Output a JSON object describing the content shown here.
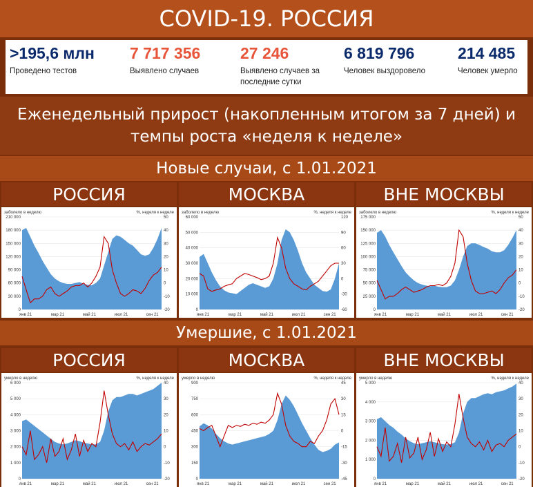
{
  "header": {
    "title": "COVID-19. РОССИЯ"
  },
  "stats": [
    {
      "value": ">195,6 млн",
      "label": "Проведено тестов",
      "color": "#0b2a6b"
    },
    {
      "value": "7 717 356",
      "label": "Выявлено случаев",
      "color": "#e8553a"
    },
    {
      "value": "27 246",
      "label": "Выявлено случаев за последние сутки",
      "color": "#e8553a"
    },
    {
      "value": "6 819 796",
      "label": "Человек выздоровело",
      "color": "#0b2a6b"
    },
    {
      "value": "214 485",
      "label": "Человек умерло",
      "color": "#0b2a6b"
    }
  ],
  "subtitle": "Еженедельный прирост (накопленным итогом за 7 дней) и темпы роста «неделя к неделе»",
  "sections": [
    {
      "title": "Новые случаи, с 1.01.2021"
    },
    {
      "title": "Умершие, с 1.01.2021"
    }
  ],
  "colors": {
    "area": "#5b9bd5",
    "line": "#c00000"
  },
  "chart_data": [
    {
      "type": "area",
      "region": "РОССИЯ",
      "section": "cases",
      "ylabel": "заболело в неделю",
      "y2label": "%, неделя к неделе",
      "x_ticks": [
        "янв 21",
        "мар 21",
        "май 21",
        "июл 21",
        "сен 21"
      ],
      "ylim": [
        0,
        210000
      ],
      "y_ticks": [
        "210 000",
        "180 000",
        "150 000",
        "120 000",
        "90 000",
        "60 000",
        "30 000",
        "0"
      ],
      "y2lim": [
        -20,
        50
      ],
      "y2_ticks": [
        "50",
        "40",
        "30",
        "20",
        "10",
        "0",
        "-10",
        "-20"
      ],
      "area_values": [
        180000,
        185000,
        165000,
        145000,
        128000,
        110000,
        95000,
        80000,
        70000,
        64000,
        60000,
        58000,
        58000,
        60000,
        62000,
        58000,
        56000,
        55000,
        60000,
        70000,
        100000,
        130000,
        160000,
        168000,
        165000,
        158000,
        150000,
        145000,
        135000,
        125000,
        122000,
        125000,
        140000,
        160000,
        185000
      ],
      "line_values": [
        5,
        -5,
        -15,
        -12,
        -12,
        -10,
        -5,
        -3,
        -8,
        -10,
        -8,
        -6,
        -3,
        -2,
        -2,
        0,
        -3,
        0,
        5,
        12,
        35,
        30,
        10,
        0,
        -8,
        -10,
        -8,
        -5,
        -6,
        -8,
        -4,
        2,
        6,
        8,
        12
      ]
    },
    {
      "type": "area",
      "region": "МОСКВА",
      "section": "cases",
      "ylabel": "заболело в неделю",
      "y2label": "%, неделя к неделе",
      "x_ticks": [
        "янв 21",
        "мар 21",
        "май 21",
        "июл 21",
        "сен 21"
      ],
      "ylim": [
        0,
        60000
      ],
      "y_ticks": [
        "60 000",
        "50 000",
        "40 000",
        "30 000",
        "20 000",
        "10 000",
        "0"
      ],
      "y2lim": [
        -60,
        120
      ],
      "y2_ticks": [
        "120",
        "90",
        "60",
        "30",
        "0",
        "-30",
        "-60"
      ],
      "area_values": [
        34000,
        36000,
        30000,
        24000,
        19000,
        15000,
        12500,
        11000,
        10500,
        10000,
        12000,
        14000,
        16000,
        17000,
        16000,
        15000,
        14000,
        15000,
        20000,
        30000,
        45000,
        52000,
        50000,
        45000,
        38000,
        30000,
        24000,
        20000,
        16000,
        14000,
        12000,
        11500,
        13000,
        20000,
        30000
      ],
      "line_values": [
        10,
        5,
        -20,
        -25,
        -22,
        -20,
        -15,
        -12,
        -10,
        0,
        5,
        10,
        8,
        5,
        2,
        -2,
        0,
        5,
        30,
        80,
        60,
        20,
        0,
        -10,
        -15,
        -20,
        -22,
        -15,
        -10,
        -5,
        5,
        15,
        25,
        30,
        30
      ]
    },
    {
      "type": "area",
      "region": "ВНЕ МОСКВЫ",
      "section": "cases",
      "ylabel": "заболело в неделю",
      "y2label": "%, неделя к неделе",
      "x_ticks": [
        "янв 21",
        "мар 21",
        "май 21",
        "июл 21",
        "сен 21"
      ],
      "ylim": [
        0,
        175000
      ],
      "y_ticks": [
        "175 000",
        "150 000",
        "125 000",
        "100 000",
        "75 000",
        "50 000",
        "25 000",
        "0"
      ],
      "y2lim": [
        -20,
        50
      ],
      "y2_ticks": [
        "50",
        "40",
        "30",
        "20",
        "10",
        "0",
        "-10",
        "-20"
      ],
      "area_values": [
        145000,
        150000,
        138000,
        122000,
        108000,
        95000,
        82000,
        70000,
        62000,
        55000,
        50000,
        47000,
        45000,
        44000,
        45000,
        43000,
        42000,
        42000,
        45000,
        55000,
        75000,
        100000,
        120000,
        125000,
        125000,
        122000,
        118000,
        115000,
        110000,
        108000,
        108000,
        112000,
        122000,
        135000,
        150000
      ],
      "line_values": [
        2,
        -5,
        -12,
        -10,
        -10,
        -8,
        -5,
        -3,
        -5,
        -7,
        -6,
        -5,
        -3,
        -2,
        -2,
        -1,
        -2,
        0,
        5,
        15,
        40,
        35,
        15,
        2,
        -6,
        -8,
        -8,
        -7,
        -6,
        -8,
        -5,
        0,
        4,
        6,
        10
      ]
    },
    {
      "type": "area",
      "region": "РОССИЯ",
      "section": "deaths",
      "ylabel": "умерло в неделю",
      "y2label": "%, неделя к неделе",
      "x_ticks": [
        "янв 21",
        "мар 21",
        "май 21",
        "июл 21",
        "сен 21"
      ],
      "ylim": [
        0,
        6000
      ],
      "y_ticks": [
        "6 000",
        "5 000",
        "4 000",
        "3 000",
        "2 000",
        "1 000",
        "0"
      ],
      "y2lim": [
        -20,
        40
      ],
      "y2_ticks": [
        "40",
        "30",
        "20",
        "10",
        "0",
        "-10",
        "-20"
      ],
      "area_values": [
        3600,
        3700,
        3500,
        3300,
        3100,
        2900,
        2700,
        2500,
        2300,
        2200,
        2150,
        2200,
        2300,
        2400,
        2350,
        2250,
        2200,
        2150,
        2150,
        2300,
        3000,
        4200,
        4900,
        5100,
        5100,
        5200,
        5300,
        5300,
        5200,
        5300,
        5400,
        5500,
        5600,
        5800,
        6000
      ],
      "line_values": [
        0,
        -5,
        10,
        -8,
        -5,
        0,
        -10,
        5,
        -6,
        -3,
        5,
        -8,
        -2,
        8,
        -6,
        4,
        -3,
        2,
        0,
        15,
        35,
        20,
        8,
        2,
        0,
        2,
        -2,
        3,
        -3,
        0,
        2,
        1,
        3,
        5,
        8
      ]
    },
    {
      "type": "area",
      "region": "МОСКВА",
      "section": "deaths",
      "ylabel": "умерло в неделю",
      "y2label": "%, неделя к неделе",
      "x_ticks": [
        "янв 21",
        "мар 21",
        "май 21",
        "июл 21",
        "сен 21"
      ],
      "ylim": [
        0,
        900
      ],
      "y_ticks": [
        "900",
        "750",
        "600",
        "450",
        "300",
        "150",
        "0"
      ],
      "y2lim": [
        -45,
        45
      ],
      "y2_ticks": [
        "45",
        "30",
        "15",
        "0",
        "-15",
        "-30",
        "-45"
      ],
      "area_values": [
        490,
        520,
        500,
        470,
        420,
        380,
        350,
        330,
        320,
        330,
        340,
        350,
        360,
        370,
        380,
        390,
        400,
        420,
        450,
        550,
        700,
        780,
        740,
        680,
        600,
        520,
        450,
        380,
        320,
        270,
        250,
        260,
        280,
        320,
        340
      ],
      "line_values": [
        2,
        0,
        3,
        5,
        -5,
        -15,
        -5,
        5,
        3,
        5,
        4,
        6,
        5,
        7,
        6,
        8,
        7,
        10,
        15,
        35,
        25,
        5,
        -5,
        -10,
        -12,
        -15,
        -15,
        -10,
        -12,
        -5,
        0,
        10,
        25,
        30,
        15
      ]
    },
    {
      "type": "area",
      "region": "ВНЕ МОСКВЫ",
      "section": "deaths",
      "ylabel": "умерло в неделю",
      "y2label": "%, неделя к неделе",
      "x_ticks": [
        "янв 21",
        "мар 21",
        "май 21",
        "июл 21",
        "сен 21"
      ],
      "ylim": [
        0,
        5000
      ],
      "y_ticks": [
        "5 000",
        "4 000",
        "3 000",
        "2 000",
        "1 000",
        "0"
      ],
      "y2lim": [
        -20,
        40
      ],
      "y2_ticks": [
        "40",
        "30",
        "20",
        "10",
        "0",
        "-10",
        "-20"
      ],
      "area_values": [
        3100,
        3200,
        3000,
        2800,
        2650,
        2450,
        2300,
        2100,
        1950,
        1850,
        1800,
        1850,
        1900,
        1950,
        1900,
        1850,
        1800,
        1780,
        1800,
        1900,
        2400,
        3400,
        4000,
        4200,
        4200,
        4300,
        4400,
        4450,
        4400,
        4500,
        4550,
        4600,
        4700,
        4800,
        4950
      ],
      "line_values": [
        0,
        -6,
        12,
        -9,
        -6,
        2,
        -10,
        6,
        -7,
        -4,
        6,
        -8,
        -2,
        9,
        -6,
        5,
        -3,
        3,
        0,
        14,
        33,
        18,
        6,
        2,
        0,
        3,
        -2,
        4,
        -3,
        1,
        2,
        0,
        4,
        6,
        8
      ]
    }
  ]
}
